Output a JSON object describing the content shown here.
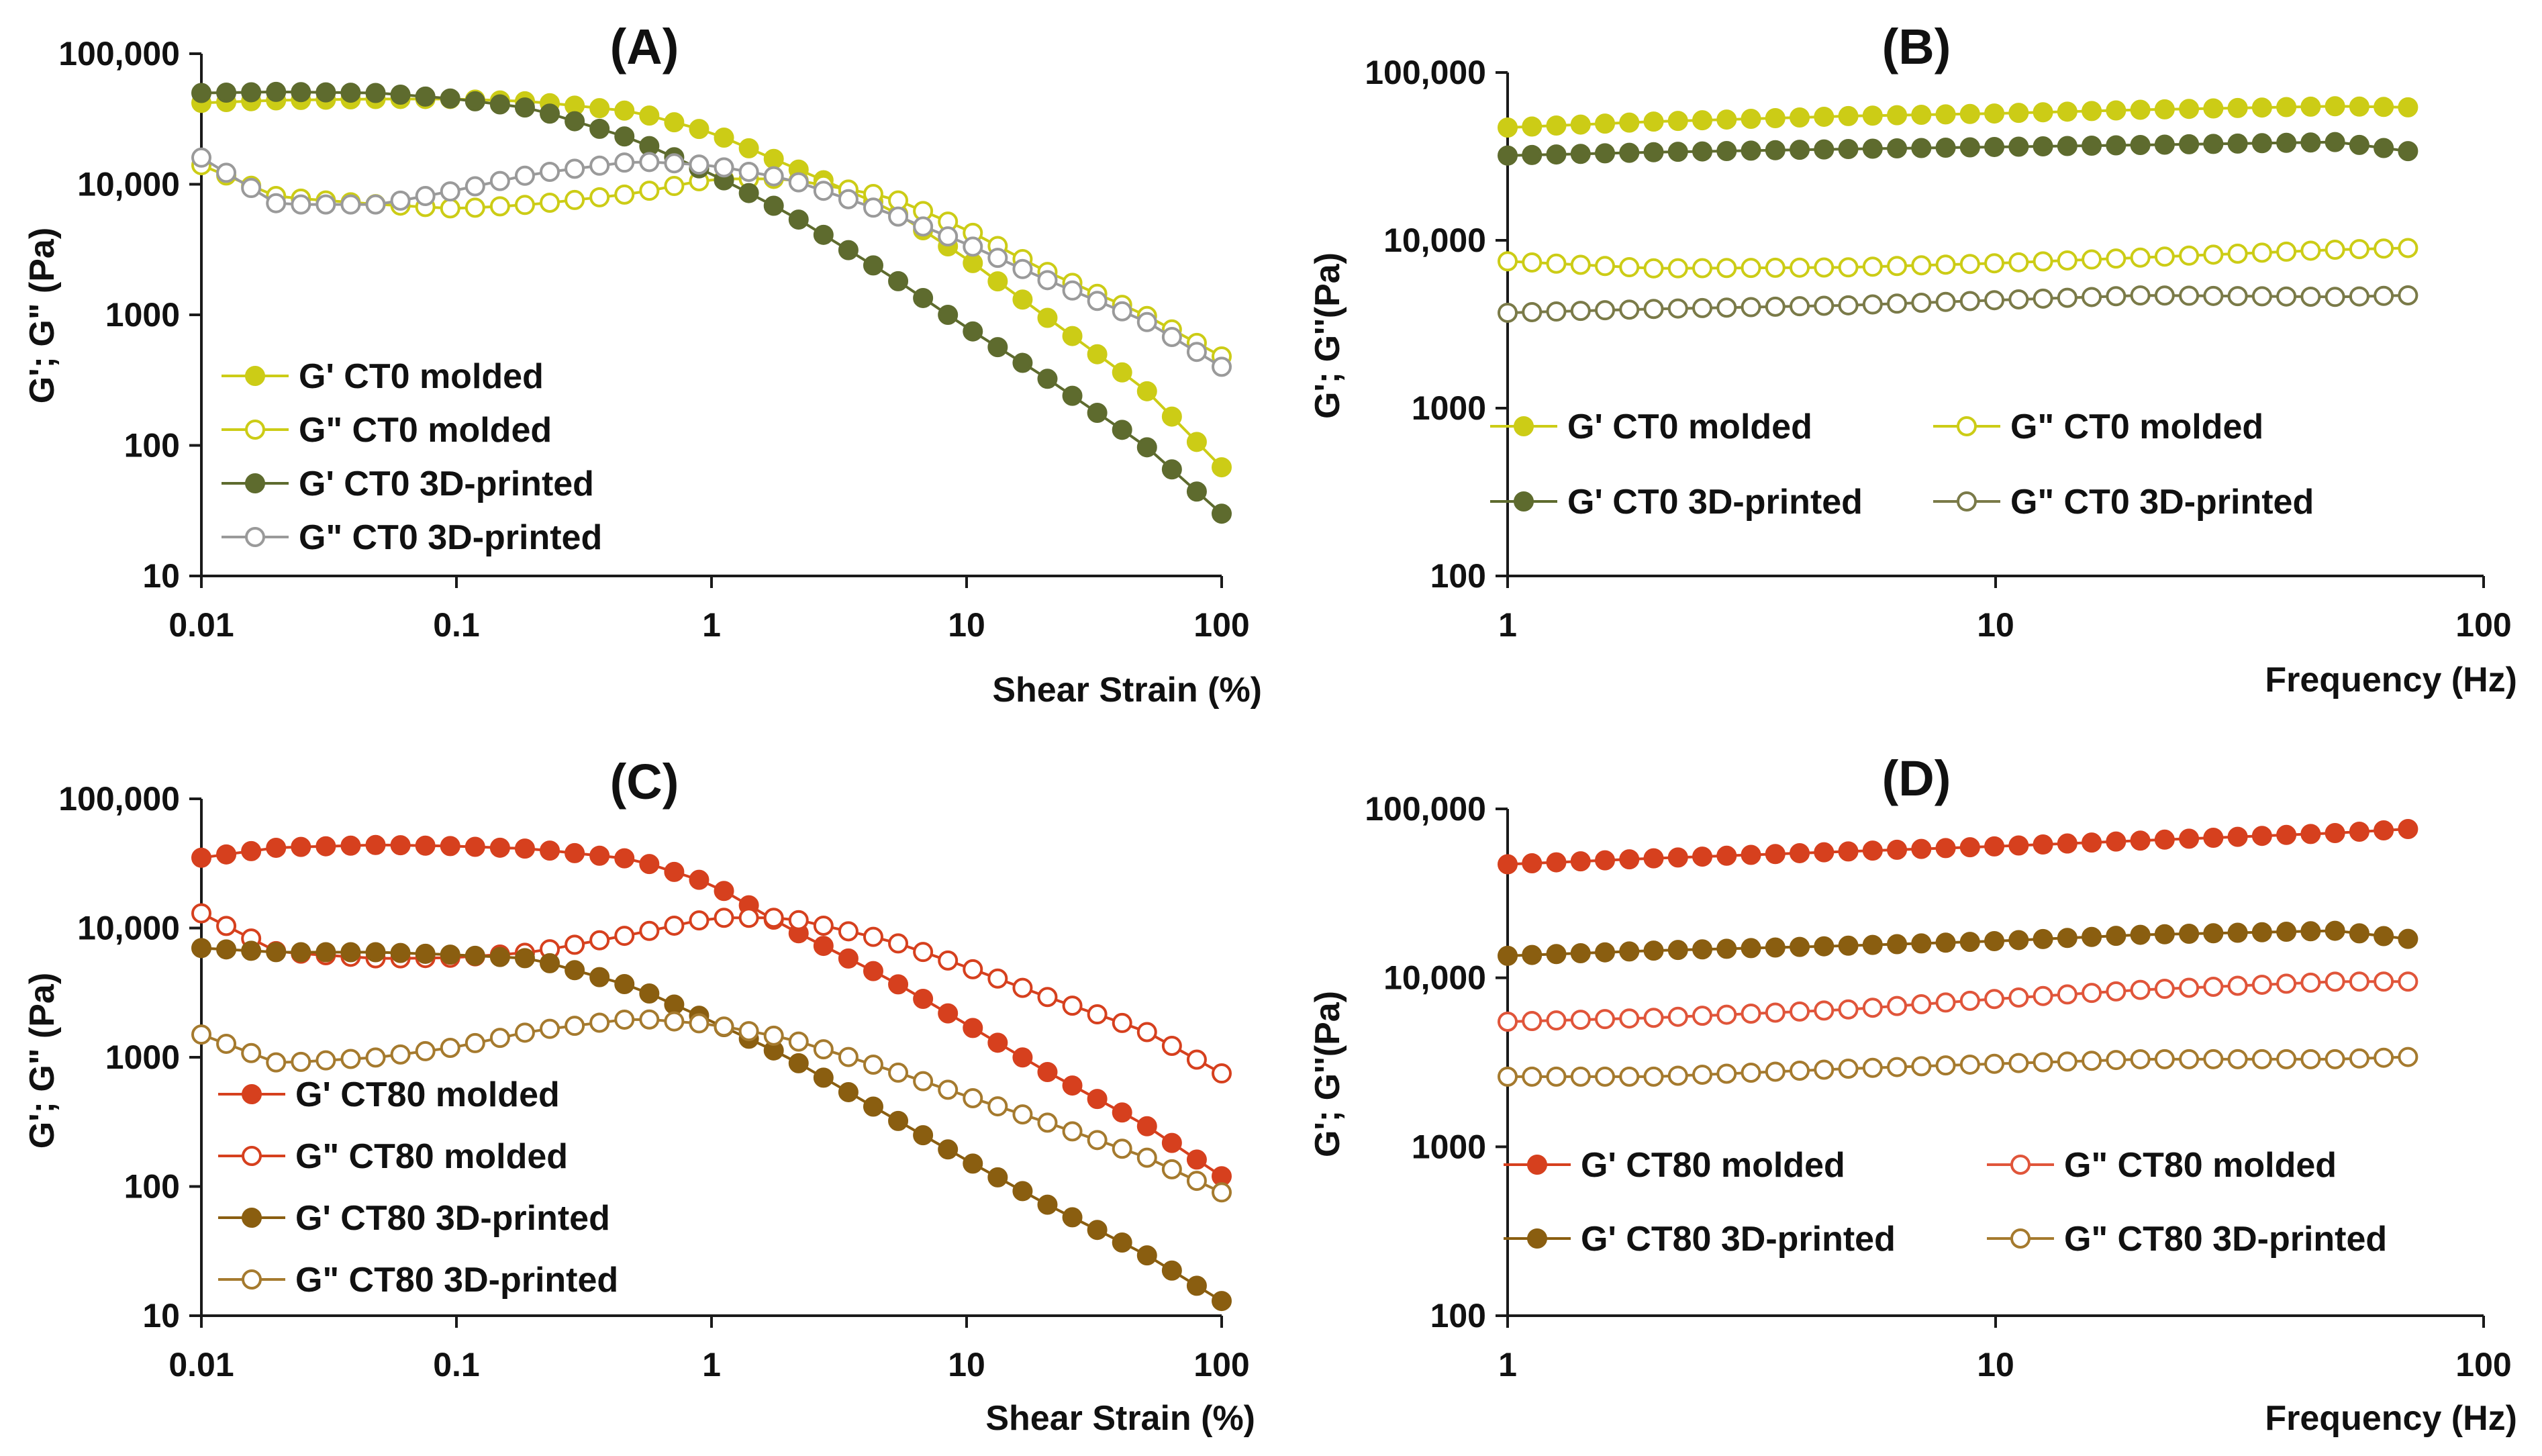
{
  "chart_data": [
    {
      "type": "line",
      "title": "(A)",
      "xlabel": "Shear Strain (%)",
      "ylabel": "G'; G\" (Pa)",
      "xscale": "log",
      "yscale": "log",
      "xlim": [
        0.01,
        100
      ],
      "ylim": [
        10,
        100000
      ],
      "xticks": [
        "0.01",
        "0.1",
        "1",
        "10",
        "100"
      ],
      "yticks": [
        "10",
        "100",
        "1000",
        "10,000",
        "100,000"
      ],
      "legend_position": "lower-left",
      "legend_layout": "column",
      "x": [
        0.01,
        0.02,
        0.05,
        0.1,
        0.2,
        0.5,
        1,
        2,
        5,
        10,
        20,
        50,
        100
      ],
      "series": [
        {
          "name": "G' CT0 molded",
          "color": "#cccc16",
          "filled": true,
          "marker_count": 42,
          "values": [
            42000,
            44000,
            45000,
            45000,
            43000,
            36000,
            25000,
            14000,
            6500,
            2700,
            1000,
            270,
            68
          ]
        },
        {
          "name": "G\" CT0 molded",
          "color": "#cccc16",
          "filled": false,
          "marker_count": 42,
          "values": [
            14000,
            8000,
            7000,
            6500,
            7000,
            8500,
            11000,
            11000,
            8000,
            4500,
            2200,
            1000,
            480
          ]
        },
        {
          "name": "G' CT0 3D-printed",
          "color": "#5e6b2e",
          "filled": true,
          "marker_count": 42,
          "values": [
            50000,
            51000,
            50000,
            45000,
            38000,
            22000,
            12000,
            6000,
            2000,
            800,
            340,
            100,
            30
          ]
        },
        {
          "name": "G\" CT0 3D-printed",
          "color": "#9a9a9a",
          "filled": false,
          "marker_count": 42,
          "values": [
            16000,
            7000,
            7000,
            9000,
            12000,
            15000,
            14000,
            11000,
            6000,
            3500,
            1900,
            900,
            400
          ]
        }
      ]
    },
    {
      "type": "line",
      "title": "(B)",
      "xlabel": "Frequency (Hz)",
      "ylabel": "G'; G''(Pa)",
      "xscale": "log",
      "yscale": "log",
      "xlim": [
        1,
        100
      ],
      "ylim": [
        100,
        100000
      ],
      "xticks": [
        "1",
        "10",
        "100"
      ],
      "yticks": [
        "100",
        "1000",
        "10,000",
        "100,000"
      ],
      "legend_position": "lower-center",
      "legend_layout": "grid-2x2",
      "x": [
        1,
        2,
        5,
        10,
        20,
        50,
        70
      ],
      "series": [
        {
          "name": "G' CT0 molded",
          "color": "#cccc16",
          "filled": true,
          "marker_count": 38,
          "values": [
            47000,
            51000,
            55000,
            57000,
            60000,
            63000,
            62000
          ]
        },
        {
          "name": "G\" CT0 molded",
          "color": "#cccc16",
          "filled": false,
          "marker_count": 38,
          "values": [
            7500,
            6800,
            6900,
            7300,
            7900,
            8800,
            9000
          ]
        },
        {
          "name": "G' CT0 3D-printed",
          "color": "#5e6b2e",
          "filled": true,
          "marker_count": 38,
          "values": [
            32000,
            33500,
            35000,
            36000,
            37000,
            38500,
            34000
          ]
        },
        {
          "name": "G\" CT0 3D-printed",
          "color": "#7a7a48",
          "filled": false,
          "marker_count": 38,
          "values": [
            3700,
            3900,
            4100,
            4400,
            4700,
            4600,
            4700
          ]
        }
      ]
    },
    {
      "type": "line",
      "title": "(C)",
      "xlabel": "Shear Strain (%)",
      "ylabel": "G'; G\" (Pa)",
      "xscale": "log",
      "yscale": "log",
      "xlim": [
        0.01,
        100
      ],
      "ylim": [
        10,
        100000
      ],
      "xticks": [
        "0.01",
        "0.1",
        "1",
        "10",
        "100"
      ],
      "yticks": [
        "10",
        "100",
        "1000",
        "10,000",
        "100,000"
      ],
      "legend_position": "lower-left",
      "legend_layout": "column",
      "x": [
        0.01,
        0.02,
        0.05,
        0.1,
        0.2,
        0.5,
        1,
        2,
        5,
        10,
        20,
        50,
        100
      ],
      "series": [
        {
          "name": "G' CT80 molded",
          "color": "#d6401e",
          "filled": true,
          "marker_count": 42,
          "values": [
            35000,
            42000,
            44000,
            43000,
            41000,
            34000,
            22000,
            10000,
            4000,
            1800,
            800,
            300,
            120
          ]
        },
        {
          "name": "G\" CT80 molded",
          "color": "#d6401e",
          "filled": false,
          "marker_count": 42,
          "values": [
            13000,
            6500,
            5800,
            5900,
            6500,
            9000,
            12000,
            12000,
            8000,
            5000,
            3000,
            1600,
            750
          ]
        },
        {
          "name": "G' CT80 3D-printed",
          "color": "#8a5e10",
          "filled": true,
          "marker_count": 42,
          "values": [
            7000,
            6500,
            6500,
            6200,
            5800,
            3500,
            1900,
            1000,
            350,
            160,
            75,
            30,
            13
          ]
        },
        {
          "name": "G\" CT80 3D-printed",
          "color": "#a57a2e",
          "filled": false,
          "marker_count": 42,
          "values": [
            1500,
            900,
            1000,
            1200,
            1600,
            2000,
            1800,
            1400,
            800,
            500,
            320,
            170,
            90
          ]
        }
      ]
    },
    {
      "type": "line",
      "title": "(D)",
      "xlabel": "Frequency (Hz)",
      "ylabel": "G'; G''(Pa)",
      "xscale": "log",
      "yscale": "log",
      "xlim": [
        1,
        100
      ],
      "ylim": [
        100,
        100000
      ],
      "xticks": [
        "1",
        "10",
        "100"
      ],
      "yticks": [
        "100",
        "1000",
        "10,000",
        "100,000"
      ],
      "legend_position": "lower-center",
      "legend_layout": "grid-2x2",
      "x": [
        1,
        2,
        5,
        10,
        20,
        50,
        70
      ],
      "series": [
        {
          "name": "G' CT80 molded",
          "color": "#d6401e",
          "filled": true,
          "marker_count": 38,
          "values": [
            47000,
            51000,
            56000,
            60000,
            65000,
            72000,
            76000
          ]
        },
        {
          "name": "G\" CT80 molded",
          "color": "#e0553a",
          "filled": false,
          "marker_count": 38,
          "values": [
            5500,
            5800,
            6500,
            7500,
            8500,
            9500,
            9500
          ]
        },
        {
          "name": "G' CT80 3D-printed",
          "color": "#8a5e10",
          "filled": true,
          "marker_count": 38,
          "values": [
            13500,
            14500,
            15500,
            16500,
            18000,
            19000,
            17000
          ]
        },
        {
          "name": "G\" CT80 3D-printed",
          "color": "#a57a2e",
          "filled": false,
          "marker_count": 38,
          "values": [
            2600,
            2600,
            2900,
            3100,
            3300,
            3300,
            3400
          ]
        }
      ]
    }
  ]
}
